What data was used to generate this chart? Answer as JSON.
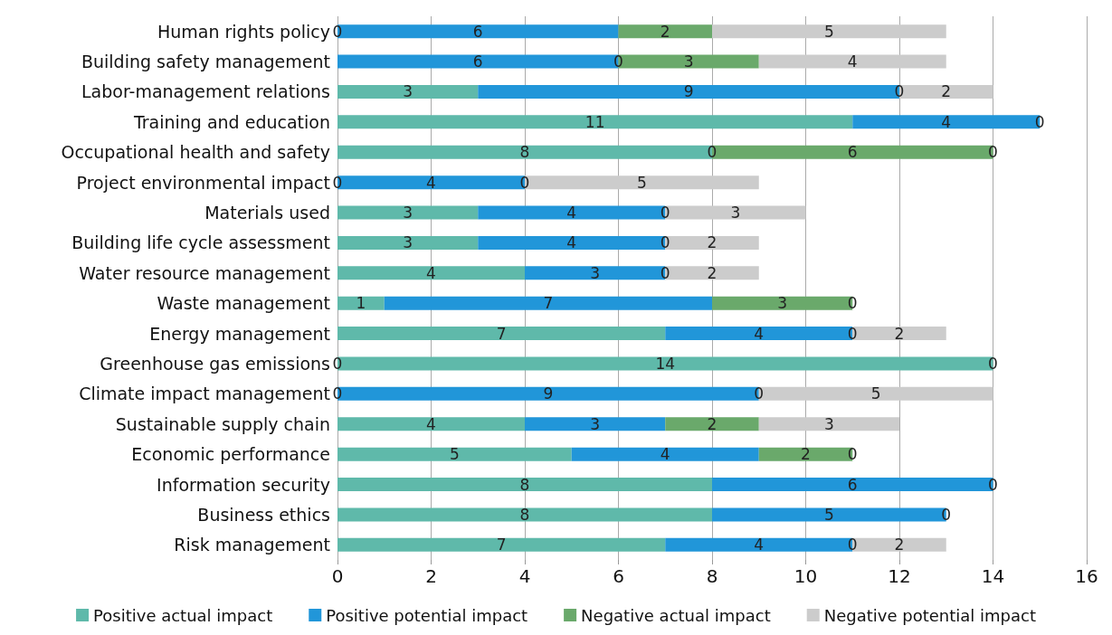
{
  "chart_data": {
    "type": "bar",
    "orientation": "horizontal",
    "stacked": true,
    "data_labels": true,
    "grid": "x",
    "legend": "bottom",
    "categories": [
      "Human rights policy",
      "Building safety management",
      "Labor-management relations",
      "Training and education",
      "Occupational health and safety",
      "Project environmental impact",
      "Materials used",
      "Building life cycle assessment",
      "Water resource management",
      "Waste management",
      "Energy management",
      "Greenhouse gas emissions",
      "Climate impact management",
      "Sustainable supply chain",
      "Economic performance",
      "Information security",
      "Business ethics",
      "Risk management"
    ],
    "xlim": [
      0,
      16
    ],
    "xticks": [
      0,
      2,
      4,
      6,
      8,
      10,
      12,
      14,
      16
    ],
    "series": [
      {
        "name": "Positive actual impact",
        "color": "#5fb9aa",
        "values": [
          null,
          null,
          3,
          11,
          8,
          null,
          3,
          3,
          4,
          1,
          7,
          14,
          null,
          4,
          5,
          8,
          8,
          7
        ]
      },
      {
        "name": "Positive potential impact",
        "color": "#2196d9",
        "values": [
          6,
          6,
          9,
          4,
          null,
          4,
          4,
          4,
          3,
          7,
          4,
          null,
          9,
          3,
          4,
          6,
          5,
          4
        ]
      },
      {
        "name": "Negative actual impact",
        "color": "#6aa96b",
        "values": [
          2,
          3,
          null,
          null,
          6,
          null,
          null,
          null,
          null,
          3,
          null,
          null,
          null,
          2,
          2,
          null,
          null,
          null
        ]
      },
      {
        "name": "Negative potential impact",
        "color": "#cccccc",
        "values": [
          5,
          4,
          2,
          null,
          null,
          5,
          3,
          2,
          2,
          null,
          2,
          null,
          5,
          3,
          null,
          null,
          null,
          2
        ]
      }
    ],
    "annotations": [
      {
        "text": "0",
        "x": 0,
        "y": "Human rights policy"
      },
      {
        "text": "0",
        "x": 6,
        "y": "Building safety management"
      },
      {
        "text": "0",
        "x": 12,
        "y": "Labor-management relations"
      },
      {
        "text": "0",
        "x": 15,
        "y": "Training and education"
      },
      {
        "text": "0",
        "x": 8,
        "y": "Occupational health and safety"
      },
      {
        "text": "0",
        "x": 14,
        "y": "Occupational health and safety"
      },
      {
        "text": "0",
        "x": 0,
        "y": "Project environmental impact"
      },
      {
        "text": "0",
        "x": 4,
        "y": "Project environmental impact"
      },
      {
        "text": "0",
        "x": 7,
        "y": "Materials used"
      },
      {
        "text": "0",
        "x": 7,
        "y": "Building life cycle assessment"
      },
      {
        "text": "0",
        "x": 7,
        "y": "Water resource management"
      },
      {
        "text": "0",
        "x": 11,
        "y": "Waste management"
      },
      {
        "text": "0",
        "x": 11,
        "y": "Energy management"
      },
      {
        "text": "0",
        "x": 0,
        "y": "Greenhouse gas emissions"
      },
      {
        "text": "0",
        "x": 14,
        "y": "Greenhouse gas emissions"
      },
      {
        "text": "0",
        "x": 0,
        "y": "Climate impact management"
      },
      {
        "text": "0",
        "x": 9,
        "y": "Climate impact management"
      },
      {
        "text": "0",
        "x": 11,
        "y": "Economic performance"
      },
      {
        "text": "0",
        "x": 14,
        "y": "Information security"
      },
      {
        "text": "0",
        "x": 13,
        "y": "Business ethics"
      },
      {
        "text": "0",
        "x": 11,
        "y": "Risk management"
      }
    ]
  }
}
